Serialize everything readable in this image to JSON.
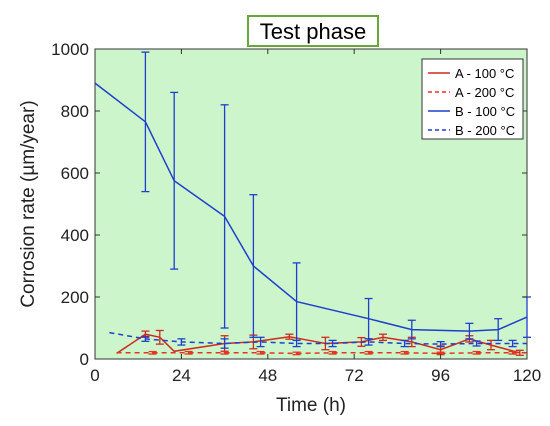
{
  "chart_data": {
    "type": "line",
    "title": "Test phase",
    "xlabel": "Time (h)",
    "ylabel": "Corrosion rate (µm/year)",
    "xlim": [
      0,
      120
    ],
    "ylim": [
      0,
      1000
    ],
    "xticks": [
      0,
      24,
      48,
      72,
      96,
      120
    ],
    "yticks": [
      0,
      200,
      400,
      600,
      800,
      1000
    ],
    "plot_background": "#ccf5cc",
    "grid": false,
    "legend_position": "top-right",
    "series": [
      {
        "name": "A - 100 °C",
        "color": "#d12a1c",
        "dash": "solid",
        "x": [
          6,
          14,
          18,
          22,
          36,
          44,
          54,
          64,
          74,
          80,
          88,
          96,
          104,
          110,
          118
        ],
        "y": [
          18,
          80,
          70,
          25,
          50,
          55,
          72,
          50,
          55,
          70,
          55,
          30,
          65,
          45,
          20
        ],
        "err": [
          0,
          10,
          22,
          0,
          25,
          22,
          8,
          20,
          14,
          10,
          15,
          12,
          10,
          15,
          8
        ]
      },
      {
        "name": "A - 200 °C",
        "color": "#e8341f",
        "dash": "dashed",
        "x": [
          6,
          16,
          26,
          36,
          46,
          56,
          66,
          76,
          86,
          96,
          106,
          116,
          120
        ],
        "y": [
          20,
          20,
          20,
          20,
          20,
          18,
          20,
          20,
          20,
          18,
          20,
          20,
          20
        ],
        "err": [
          0,
          4,
          4,
          4,
          4,
          4,
          4,
          4,
          4,
          4,
          4,
          4,
          0
        ]
      },
      {
        "name": "B - 100 °C",
        "color": "#1f3fcc",
        "dash": "solid",
        "x": [
          0,
          14,
          22,
          36,
          44,
          56,
          76,
          88,
          104,
          112,
          120
        ],
        "y": [
          890,
          765,
          575,
          460,
          300,
          185,
          130,
          95,
          90,
          95,
          135
        ],
        "err": [
          0,
          225,
          285,
          360,
          230,
          125,
          65,
          30,
          25,
          35,
          65
        ]
      },
      {
        "name": "B - 200 °C",
        "color": "#1f3fcc",
        "dash": "dashed",
        "x": [
          4,
          14,
          24,
          36,
          46,
          56,
          66,
          76,
          86,
          96,
          106,
          116,
          120
        ],
        "y": [
          85,
          65,
          55,
          50,
          55,
          50,
          50,
          55,
          50,
          48,
          50,
          50,
          50
        ],
        "err": [
          0,
          8,
          10,
          15,
          15,
          10,
          10,
          10,
          10,
          8,
          8,
          10,
          0
        ]
      }
    ]
  }
}
